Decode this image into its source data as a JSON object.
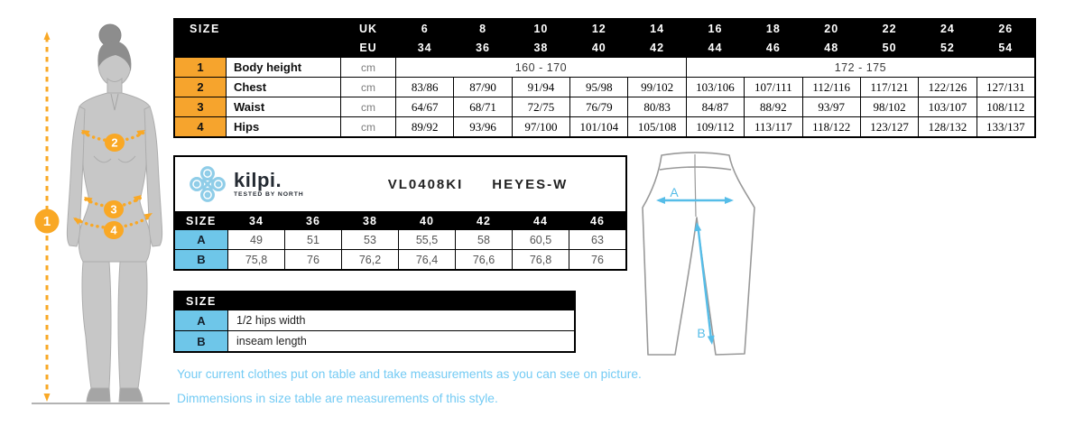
{
  "brand": {
    "logo_text": "kilpi.",
    "tagline": "TESTED BY NORTH",
    "product_code": "VL0408KI",
    "product_name": "HEYES-W"
  },
  "colors": {
    "header_bg": "#000000",
    "header_text": "#ffffff",
    "accent_orange": "#F9A825",
    "key_cell_blue": "#6EC6E9",
    "arrow_blue": "#56BDE8",
    "note_blue": "#74CBF4"
  },
  "size_table": {
    "header_label": "SIZE",
    "uk_label": "UK",
    "eu_label": "EU",
    "uk_sizes": [
      "6",
      "8",
      "10",
      "12",
      "14",
      "16",
      "18",
      "20",
      "22",
      "24",
      "26"
    ],
    "eu_sizes": [
      "34",
      "36",
      "38",
      "40",
      "42",
      "44",
      "46",
      "48",
      "50",
      "52",
      "54"
    ],
    "rows": [
      {
        "num": "1",
        "label": "Body height",
        "unit": "cm",
        "spans": [
          {
            "text": "160 - 170",
            "cols": 5
          },
          {
            "text": "172 - 175",
            "cols": 6
          }
        ]
      },
      {
        "num": "2",
        "label": "Chest",
        "unit": "cm",
        "values": [
          "83/86",
          "87/90",
          "91/94",
          "95/98",
          "99/102",
          "103/106",
          "107/111",
          "112/116",
          "117/121",
          "122/126",
          "127/131"
        ]
      },
      {
        "num": "3",
        "label": "Waist",
        "unit": "cm",
        "values": [
          "64/67",
          "68/71",
          "72/75",
          "76/79",
          "80/83",
          "84/87",
          "88/92",
          "93/97",
          "98/102",
          "103/107",
          "108/112"
        ]
      },
      {
        "num": "4",
        "label": "Hips",
        "unit": "cm",
        "values": [
          "89/92",
          "93/96",
          "97/100",
          "101/104",
          "105/108",
          "109/112",
          "113/117",
          "118/122",
          "123/127",
          "128/132",
          "133/137"
        ]
      }
    ]
  },
  "product_table": {
    "size_label": "SIZE",
    "sizes": [
      "34",
      "36",
      "38",
      "40",
      "42",
      "44",
      "46"
    ],
    "rows": [
      {
        "label": "A",
        "values": [
          "49",
          "51",
          "53",
          "55,5",
          "58",
          "60,5",
          "63"
        ]
      },
      {
        "label": "B",
        "values": [
          "75,8",
          "76",
          "76,2",
          "76,4",
          "76,6",
          "76,8",
          "76"
        ]
      }
    ]
  },
  "legend_table": {
    "size_label": "SIZE",
    "rows": [
      {
        "label": "A",
        "description": "1/2 hips width"
      },
      {
        "label": "B",
        "description": "inseam length"
      }
    ]
  },
  "figure": {
    "badges": [
      "1",
      "2",
      "3",
      "4"
    ]
  },
  "pants": {
    "labels": [
      "A",
      "B"
    ]
  },
  "notes": [
    "Your current clothes put on table and take measurements as you can see on picture.",
    "Dimmensions in size table are measurements of this style."
  ]
}
